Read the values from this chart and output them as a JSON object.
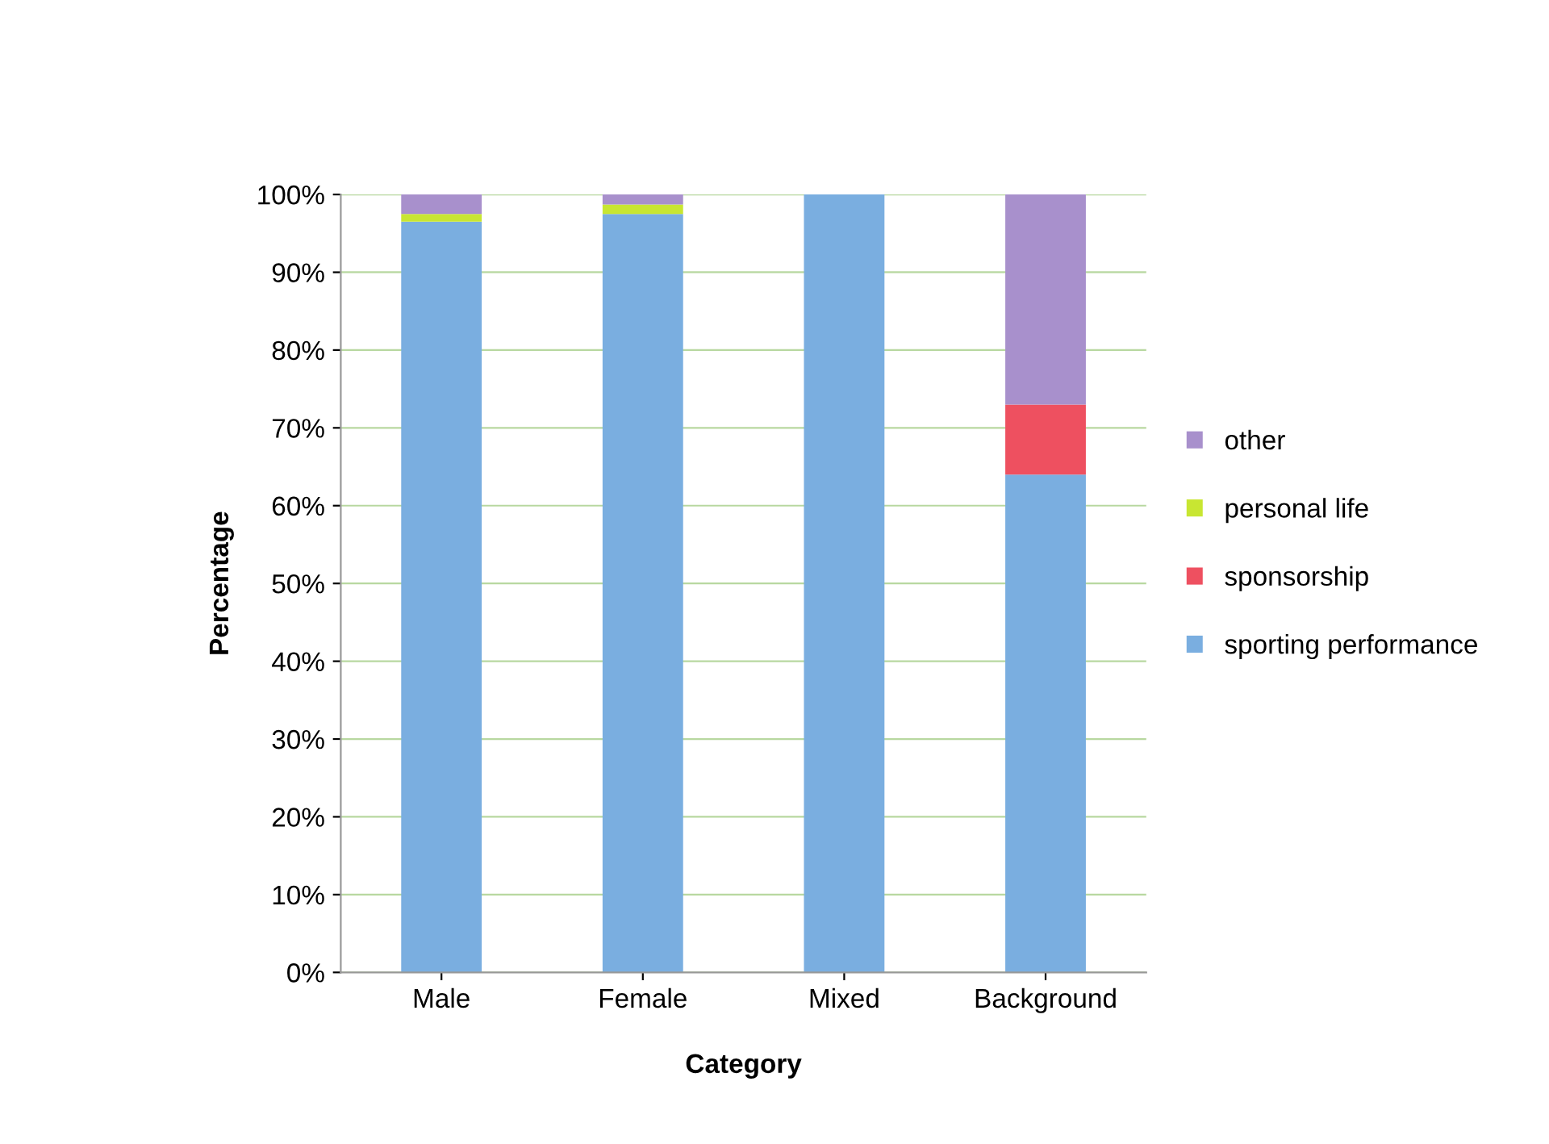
{
  "chart_data": {
    "type": "bar",
    "stacked": true,
    "xlabel": "Category",
    "ylabel": "Percentage",
    "categories": [
      "Male",
      "Female",
      "Mixed",
      "Background"
    ],
    "series": [
      {
        "name": "sporting performance",
        "color": "#7aaee0",
        "values": [
          96.5,
          97.5,
          100,
          64
        ]
      },
      {
        "name": "sponsorship",
        "color": "#ee5060",
        "values": [
          0,
          0,
          0,
          9
        ]
      },
      {
        "name": "personal life",
        "color": "#c8e632",
        "values": [
          1,
          1.2,
          0,
          0
        ]
      },
      {
        "name": "other",
        "color": "#a890cc",
        "values": [
          2.5,
          1.3,
          0,
          27
        ]
      }
    ],
    "ylim": [
      0,
      100
    ],
    "yticks": [
      {
        "value": 0,
        "label": "0%"
      },
      {
        "value": 10,
        "label": "10%"
      },
      {
        "value": 20,
        "label": "20%"
      },
      {
        "value": 30,
        "label": "30%"
      },
      {
        "value": 40,
        "label": "40%"
      },
      {
        "value": 50,
        "label": "50%"
      },
      {
        "value": 60,
        "label": "60%"
      },
      {
        "value": 70,
        "label": "70%"
      },
      {
        "value": 80,
        "label": "80%"
      },
      {
        "value": 90,
        "label": "90%"
      },
      {
        "value": 100,
        "label": "100%"
      }
    ],
    "grid": "y",
    "legend": "right"
  }
}
